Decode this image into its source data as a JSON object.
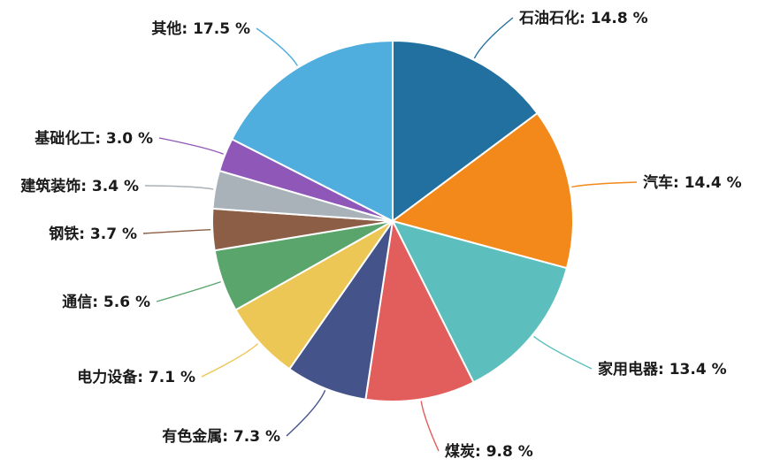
{
  "chart_data": {
    "type": "pie",
    "title": "",
    "slices": [
      {
        "label": "石油石化",
        "value": 14.8,
        "display": "14.8 %",
        "color": "#22709f"
      },
      {
        "label": "汽车",
        "value": 14.4,
        "display": "14.4 %",
        "color": "#f2891a"
      },
      {
        "label": "家用电器",
        "value": 13.4,
        "display": "13.4 %",
        "color": "#5cbfbe"
      },
      {
        "label": "煤炭",
        "value": 9.8,
        "display": "9.8 %",
        "color": "#e25e5c"
      },
      {
        "label": "有色金属",
        "value": 7.3,
        "display": "7.3 %",
        "color": "#45538b"
      },
      {
        "label": "电力设备",
        "value": 7.1,
        "display": "7.1 %",
        "color": "#edc755"
      },
      {
        "label": "通信",
        "value": 5.6,
        "display": "5.6 %",
        "color": "#5aa56c"
      },
      {
        "label": "钢铁",
        "value": 3.7,
        "display": "3.7 %",
        "color": "#8b5e45"
      },
      {
        "label": "建筑装饰",
        "value": 3.4,
        "display": "3.4 %",
        "color": "#a9b1b9"
      },
      {
        "label": "基础化工",
        "value": 3.0,
        "display": "3.0 %",
        "color": "#8f57b8"
      },
      {
        "label": "其他",
        "value": 17.5,
        "display": "17.5 %",
        "color": "#4faedd"
      }
    ]
  }
}
